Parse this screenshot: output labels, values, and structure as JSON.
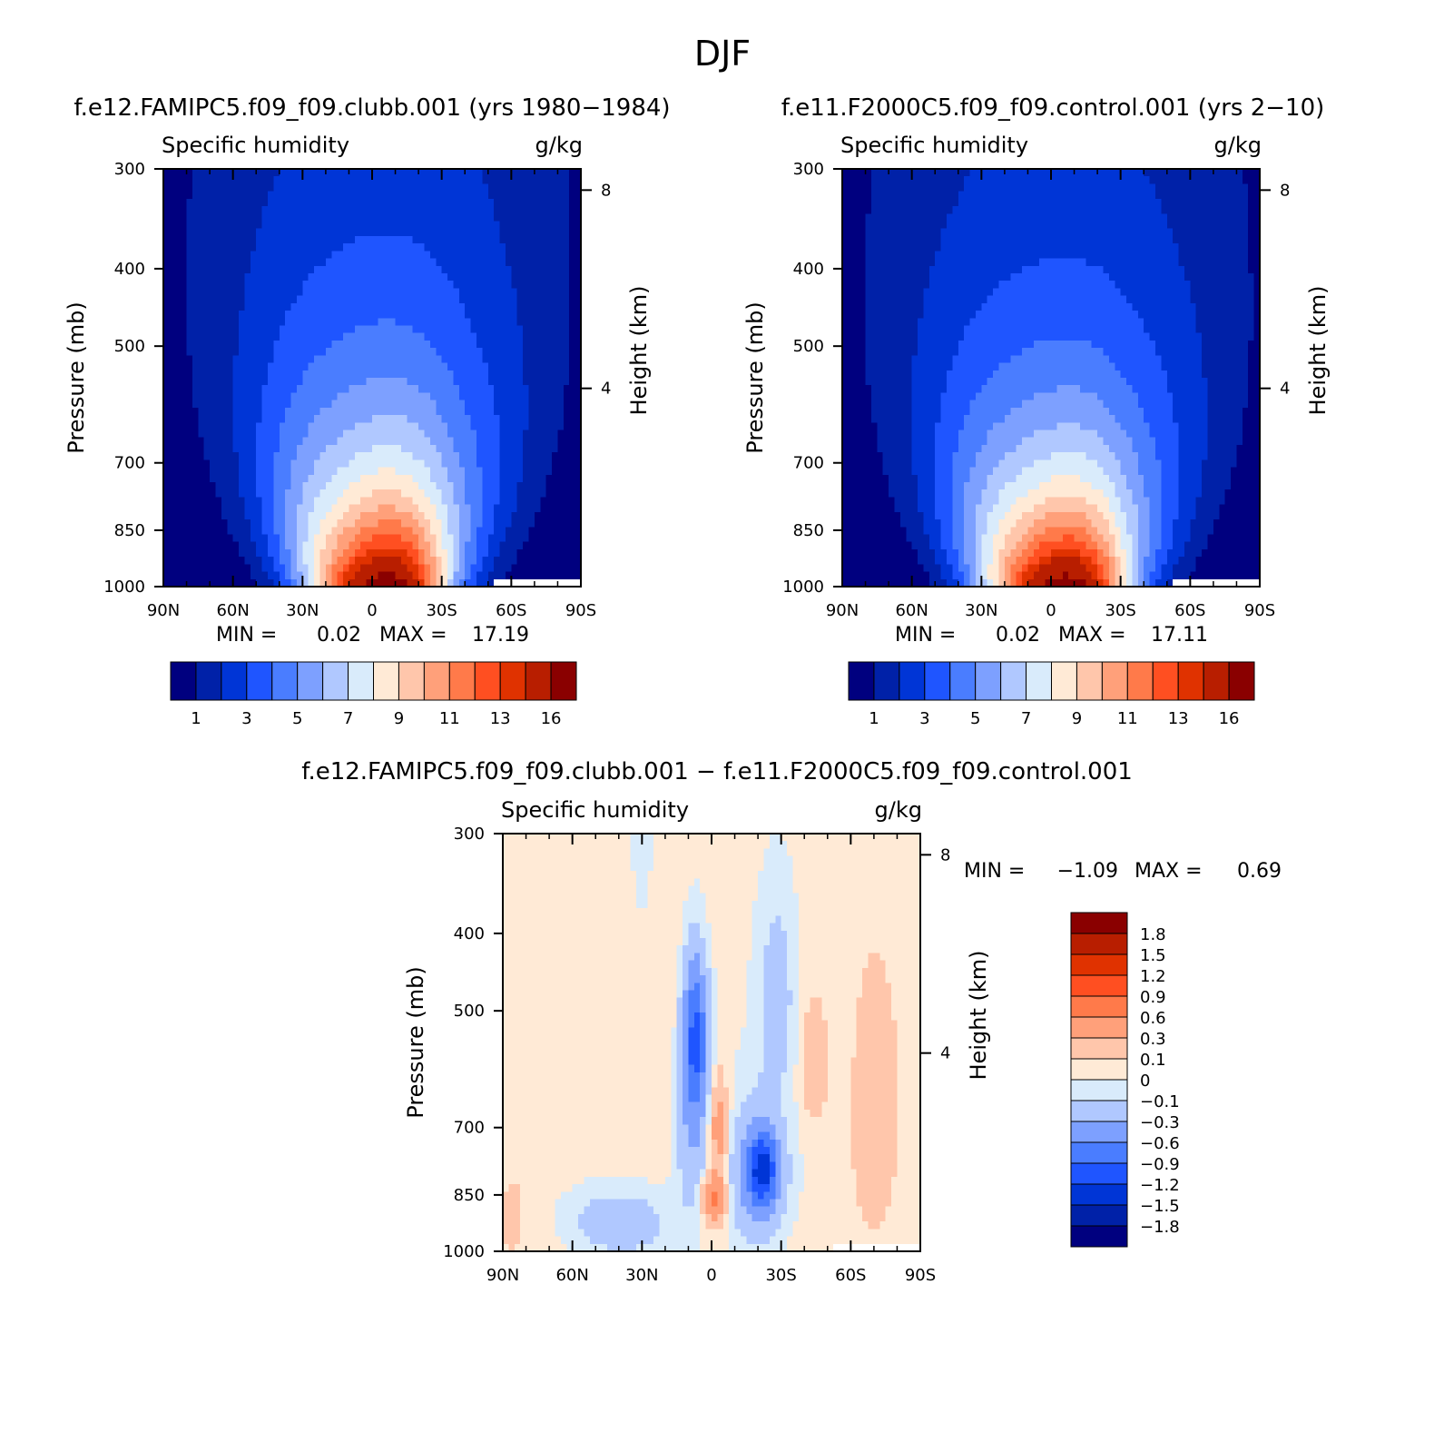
{
  "figure_title": "DJF",
  "colors": {
    "qlevels": [
      "#00007f",
      "#0021a8",
      "#0035d6",
      "#1f55ff",
      "#4a7dff",
      "#7da0ff",
      "#b0c8ff",
      "#d9ebfb",
      "#ffead6",
      "#ffc6ab",
      "#ffa07a",
      "#ff7a4a",
      "#ff4f21",
      "#e03200",
      "#b81e00",
      "#8a0000"
    ],
    "dlevels": [
      "#00007f",
      "#0021a8",
      "#0035d6",
      "#1f55ff",
      "#4a7dff",
      "#7da0ff",
      "#b0c8ff",
      "#d9ebfb",
      "#ffead6",
      "#ffc6ab",
      "#ffa07a",
      "#ff7a4a",
      "#ff4f21",
      "#e03200",
      "#b81e00",
      "#8a0000"
    ]
  },
  "chart_data": [
    {
      "type": "heatmap",
      "panel": "left",
      "title": "f.e12.FAMIPC5.f09_f09.clubb.001 (yrs 1980−1984)",
      "subtitle_left": "Specific humidity",
      "subtitle_right": "g/kg",
      "xlabel": "",
      "ylabel": "Pressure (mb)",
      "ylabel_right": "Height (km)",
      "x_ticks": [
        "90N",
        "60N",
        "30N",
        "0",
        "30S",
        "60S",
        "90S"
      ],
      "x_range": [
        -90,
        90
      ],
      "y_ticks": [
        "300",
        "400",
        "500",
        "700",
        "850",
        "1000"
      ],
      "y_range": [
        300,
        1000
      ],
      "right_ticks": [
        "8",
        "4"
      ],
      "min_label": "MIN =",
      "min_value": "0.02",
      "max_label": "MAX =",
      "max_value": "17.19",
      "colorbar_labels": [
        "1",
        "3",
        "5",
        "7",
        "9",
        "11",
        "13",
        "16"
      ],
      "levels": [
        1,
        2,
        3,
        4,
        5,
        6,
        7,
        8,
        9,
        10,
        11,
        12,
        13,
        14,
        16
      ],
      "field": {
        "peak": 17.19,
        "center_lat": 3,
        "base_half_width": 32,
        "surface_decay": 0.52,
        "mask_start_lat": 52
      }
    },
    {
      "type": "heatmap",
      "panel": "right",
      "title": "f.e11.F2000C5.f09_f09.control.001 (yrs 2−10)",
      "subtitle_left": "Specific humidity",
      "subtitle_right": "g/kg",
      "xlabel": "",
      "ylabel": "Pressure (mb)",
      "ylabel_right": "Height (km)",
      "x_ticks": [
        "90N",
        "60N",
        "30N",
        "0",
        "30S",
        "60S",
        "90S"
      ],
      "x_range": [
        -90,
        90
      ],
      "y_ticks": [
        "300",
        "400",
        "500",
        "700",
        "850",
        "1000"
      ],
      "y_range": [
        300,
        1000
      ],
      "right_ticks": [
        "8",
        "4"
      ],
      "min_label": "MIN =",
      "min_value": "0.02",
      "max_label": "MAX =",
      "max_value": "17.11",
      "colorbar_labels": [
        "1",
        "3",
        "5",
        "7",
        "9",
        "11",
        "13",
        "16"
      ],
      "levels": [
        1,
        2,
        3,
        4,
        5,
        6,
        7,
        8,
        9,
        10,
        11,
        12,
        13,
        14,
        16
      ],
      "field": {
        "peak": 17.11,
        "center_lat": 3,
        "base_half_width": 33,
        "surface_decay": 0.5,
        "mask_start_lat": 52
      }
    },
    {
      "type": "heatmap",
      "panel": "difference",
      "title": "f.e12.FAMIPC5.f09_f09.clubb.001 − f.e11.F2000C5.f09_f09.control.001",
      "subtitle_left": "Specific humidity",
      "subtitle_right": "g/kg",
      "xlabel": "",
      "ylabel": "Pressure (mb)",
      "ylabel_right": "Height (km)",
      "x_ticks": [
        "90N",
        "60N",
        "30N",
        "0",
        "30S",
        "60S",
        "90S"
      ],
      "x_range": [
        -90,
        90
      ],
      "y_ticks": [
        "300",
        "400",
        "500",
        "700",
        "850",
        "1000"
      ],
      "y_range": [
        300,
        1000
      ],
      "right_ticks": [
        "8",
        "4"
      ],
      "min_label": "MIN =",
      "min_value": "−1.09",
      "max_label": "MAX =",
      "max_value": "0.69",
      "colorbar_labels": [
        "1.8",
        "1.5",
        "1.2",
        "0.9",
        "0.6",
        "0.3",
        "0.1",
        "0",
        "−0.1",
        "−0.3",
        "−0.6",
        "−0.9",
        "−1.2",
        "−1.5",
        "−1.8"
      ],
      "levels": [
        -1.8,
        -1.5,
        -1.2,
        -0.9,
        -0.6,
        -0.3,
        -0.1,
        0,
        0.1,
        0.3,
        0.6,
        0.9,
        1.2,
        1.5,
        1.8
      ],
      "features": [
        {
          "lat": -7,
          "p": 540,
          "sx": 5,
          "sp": 110,
          "amp": -0.95
        },
        {
          "lat": -8,
          "p": 700,
          "sx": 7,
          "sp": 180,
          "amp": -0.35
        },
        {
          "lat": 22,
          "p": 790,
          "sx": 6,
          "sp": 75,
          "amp": -1.09
        },
        {
          "lat": 20,
          "p": 820,
          "sx": 12,
          "sp": 160,
          "amp": -0.45
        },
        {
          "lat": 1,
          "p": 860,
          "sx": 5,
          "sp": 60,
          "amp": 0.69
        },
        {
          "lat": 3,
          "p": 700,
          "sx": 4,
          "sp": 90,
          "amp": 0.45
        },
        {
          "lat": -40,
          "p": 920,
          "sx": 22,
          "sp": 90,
          "amp": -0.25
        },
        {
          "lat": 70,
          "p": 700,
          "sx": 8,
          "sp": 220,
          "amp": 0.22
        },
        {
          "lat": 44,
          "p": 580,
          "sx": 6,
          "sp": 110,
          "amp": 0.18
        },
        {
          "lat": -86,
          "p": 900,
          "sx": 4,
          "sp": 80,
          "amp": 0.2
        },
        {
          "lat": 28,
          "p": 480,
          "sx": 8,
          "sp": 140,
          "amp": -0.2
        },
        {
          "lat": -30,
          "p": 320,
          "sx": 4,
          "sp": 60,
          "amp": -0.12
        }
      ],
      "mask_start_lat": 52
    }
  ]
}
